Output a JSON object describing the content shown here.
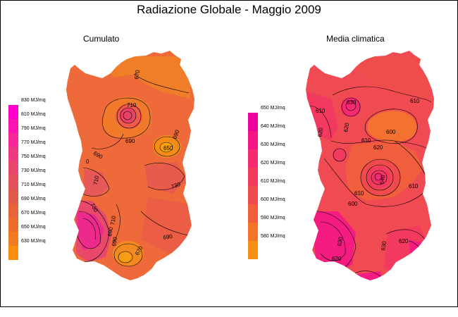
{
  "title": "Radiazione Globale - Maggio 2009",
  "panels": [
    {
      "title": "Cumulato",
      "legend": {
        "labels": [
          "830 MJ/mq",
          "810 MJ/mq",
          "790 MJ/mq",
          "770 MJ/mq",
          "750 MJ/mq",
          "730 MJ/mq",
          "710 MJ/mq",
          "690 MJ/mq",
          "670 MJ/mq",
          "650 MJ/mq",
          "630 MJ/mq"
        ],
        "colors": [
          "#ff00cc",
          "#fb14b0",
          "#f42896",
          "#ee3a80",
          "#e8486c",
          "#e2525a",
          "#e05a4a",
          "#e7633a",
          "#ec6c2c",
          "#f17b20",
          "#f88e10"
        ]
      },
      "contour_labels": [
        "670",
        "710",
        "690",
        "690",
        "650",
        "0",
        "690",
        "710",
        "730",
        "730",
        "710",
        "690",
        "690",
        "670",
        "690"
      ]
    },
    {
      "title": "Media climatica",
      "legend": {
        "labels": [
          "650 MJ/mq",
          "640 MJ/mq",
          "630 MJ/mq",
          "620 MJ/mq",
          "610 MJ/mq",
          "600 MJ/mq",
          "590 MJ/mq",
          "580 MJ/mq"
        ],
        "colors": [
          "#f0009a",
          "#f41484",
          "#f52a70",
          "#f23a5e",
          "#ef4a4e",
          "#f05e3c",
          "#f4742a",
          "#f88e14"
        ]
      },
      "contour_labels": [
        "610",
        "620",
        "630",
        "620",
        "600",
        "610",
        "620",
        "610",
        "640",
        "610",
        "610",
        "600",
        "630",
        "620",
        "630",
        "620"
      ]
    }
  ]
}
